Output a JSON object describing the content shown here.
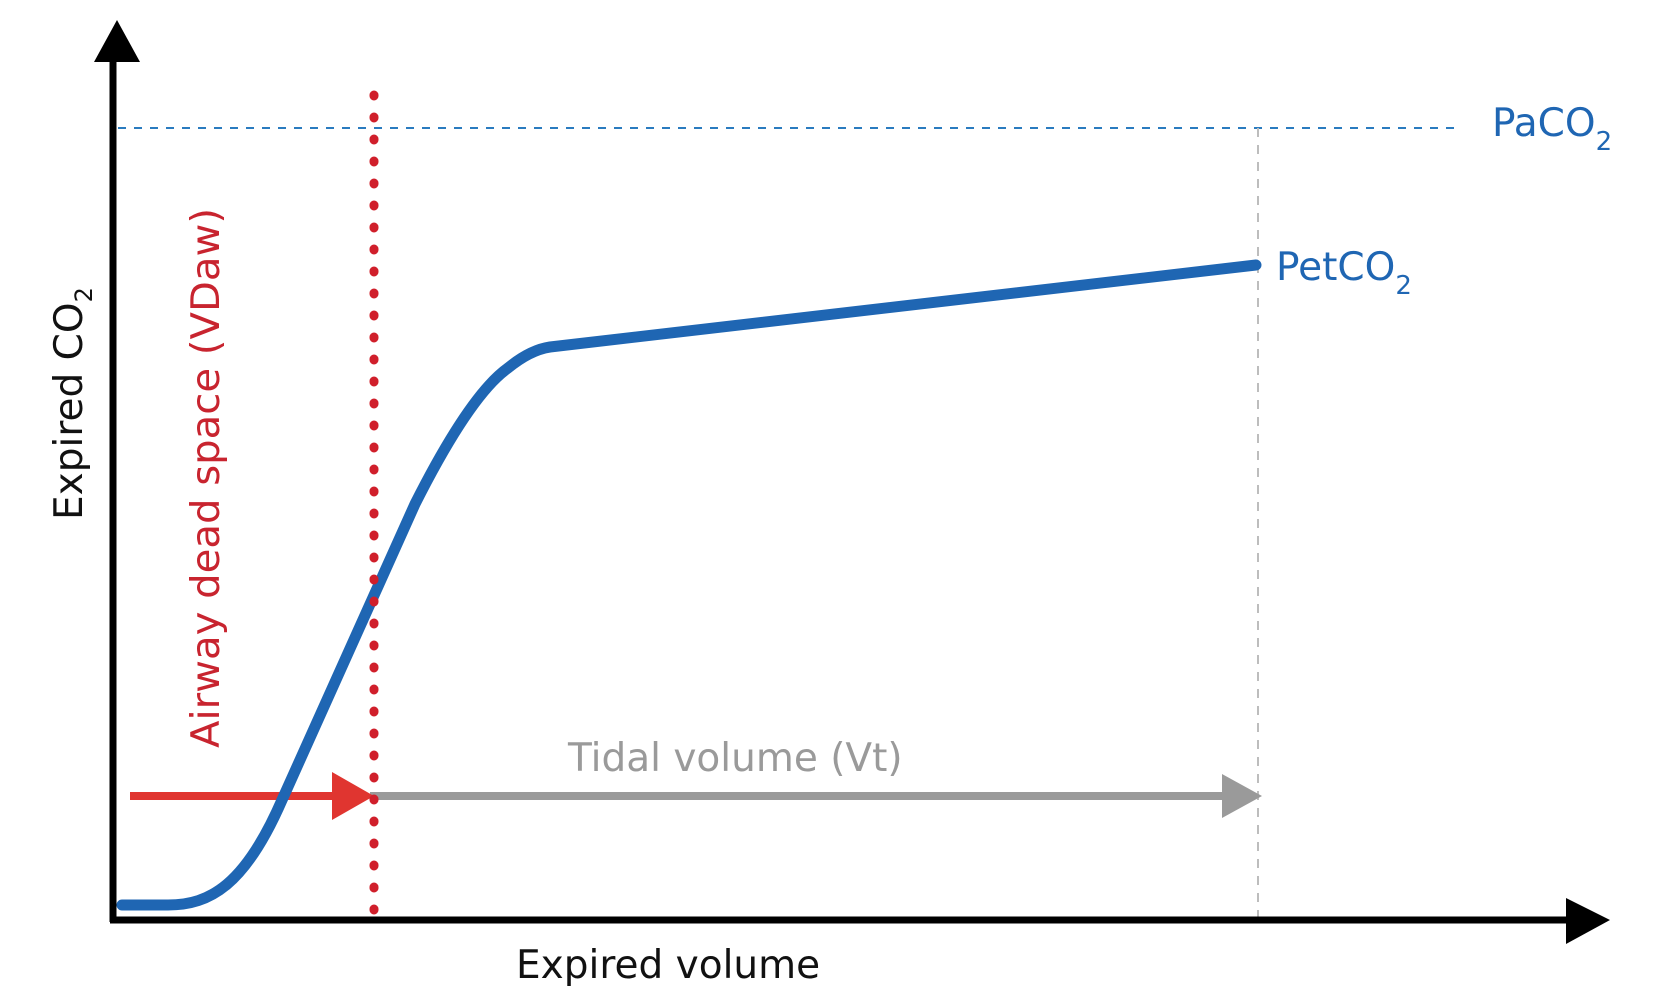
{
  "diagram": {
    "y_axis_label": {
      "text": "Expired CO",
      "subscript": "2"
    },
    "x_axis_label": "Expired volume",
    "paco2_label": {
      "text": "PaCO",
      "subscript": "2"
    },
    "petco2_label": {
      "text": "PetCO",
      "subscript": "2"
    },
    "dead_space_label": "Airway dead space (VDaw)",
    "tidal_volume_label": "Tidal volume (Vt)",
    "colors": {
      "axis": "#000000",
      "curve": "#1f66b3",
      "paco2_line": "#2a7bbf",
      "dead_space": "#d01f2b",
      "dead_space_arrow": "#e03530",
      "tidal_arrow": "#9a9a9a",
      "guide_line": "#bdbdbd"
    }
  }
}
